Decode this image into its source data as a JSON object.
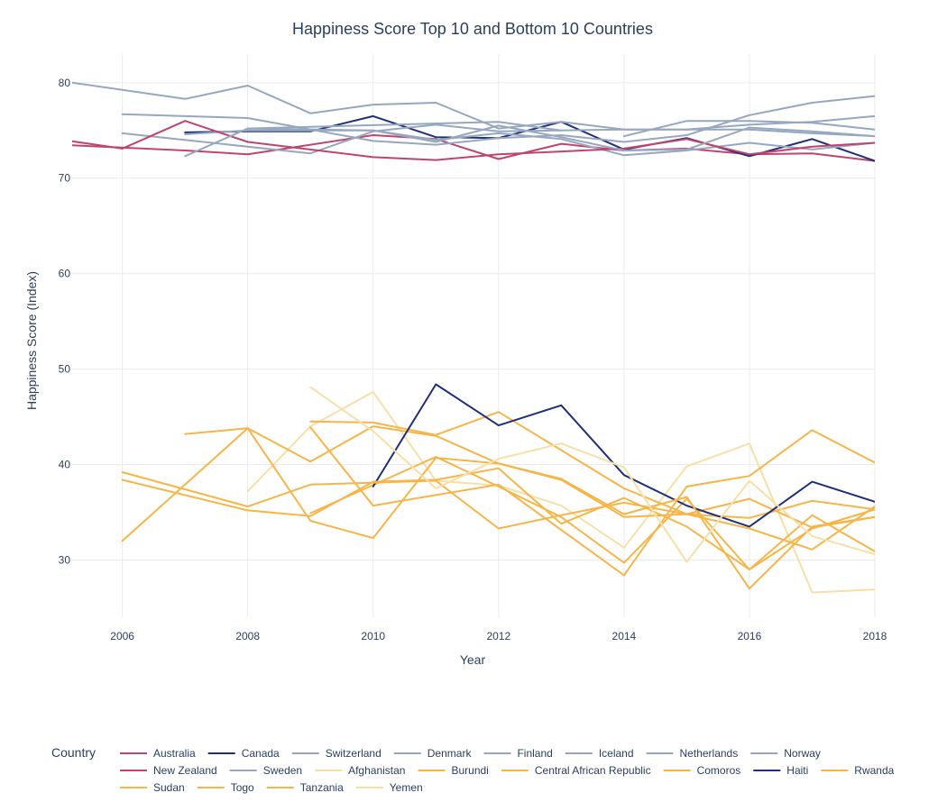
{
  "chart_data": {
    "type": "line",
    "title": "Happiness Score Top 10 and Bottom 10 Countries",
    "xlabel": "Year",
    "ylabel": "Happiness Score (Index)",
    "xlim": [
      2005.2,
      2018
    ],
    "ylim": [
      24,
      83
    ],
    "x_ticks": [
      2006,
      2008,
      2010,
      2012,
      2014,
      2016,
      2018
    ],
    "y_ticks": [
      30,
      40,
      50,
      60,
      70,
      80
    ],
    "grid": true,
    "legend_title": "Country",
    "legend_placement": "bottom",
    "series": [
      {
        "name": "Australia",
        "color": "#c0446e",
        "points": [
          [
            2005,
            73.5
          ],
          [
            2007,
            72.9
          ],
          [
            2008,
            72.5
          ],
          [
            2010,
            74.5
          ],
          [
            2011,
            74.1
          ],
          [
            2012,
            72.0
          ],
          [
            2013,
            73.6
          ],
          [
            2014,
            72.9
          ],
          [
            2015,
            73.1
          ],
          [
            2016,
            72.5
          ],
          [
            2017,
            72.6
          ],
          [
            2018,
            71.8
          ]
        ]
      },
      {
        "name": "Canada",
        "color": "#1f2f7a",
        "points": [
          [
            2007,
            74.8
          ],
          [
            2008,
            74.9
          ],
          [
            2009,
            74.9
          ],
          [
            2010,
            76.5
          ],
          [
            2011,
            74.3
          ],
          [
            2012,
            74.2
          ],
          [
            2013,
            75.9
          ],
          [
            2014,
            73.0
          ],
          [
            2015,
            74.2
          ],
          [
            2016,
            72.3
          ],
          [
            2017,
            74.1
          ],
          [
            2018,
            71.8
          ]
        ]
      },
      {
        "name": "Switzerland",
        "color": "#96a7c0",
        "points": [
          [
            2006,
            74.7
          ],
          [
            2009,
            72.6
          ],
          [
            2010,
            74.9
          ],
          [
            2011,
            75.6
          ],
          [
            2012,
            74.9
          ],
          [
            2014,
            75.1
          ],
          [
            2015,
            75.1
          ],
          [
            2016,
            75.1
          ],
          [
            2017,
            74.7
          ],
          [
            2018,
            74.4
          ]
        ]
      },
      {
        "name": "Denmark",
        "color": "#96a7c0",
        "points": [
          [
            2005,
            80.2
          ],
          [
            2007,
            78.3
          ],
          [
            2008,
            79.7
          ],
          [
            2009,
            76.8
          ],
          [
            2010,
            77.7
          ],
          [
            2011,
            77.9
          ],
          [
            2012,
            75.2
          ],
          [
            2013,
            75.9
          ],
          [
            2014,
            75.1
          ],
          [
            2015,
            75.1
          ],
          [
            2016,
            75.6
          ],
          [
            2017,
            75.9
          ],
          [
            2018,
            76.5
          ]
        ]
      },
      {
        "name": "Finland",
        "color": "#96a7c0",
        "points": [
          [
            2006,
            76.7
          ],
          [
            2008,
            76.3
          ],
          [
            2010,
            73.9
          ],
          [
            2011,
            73.5
          ],
          [
            2012,
            74.2
          ],
          [
            2013,
            74.5
          ],
          [
            2014,
            73.8
          ],
          [
            2015,
            74.5
          ],
          [
            2016,
            76.6
          ],
          [
            2017,
            77.9
          ],
          [
            2018,
            78.6
          ]
        ]
      },
      {
        "name": "Iceland",
        "color": "#96a7c0",
        "points": [
          [
            2008,
            75.2
          ],
          [
            2012,
            75.9
          ],
          [
            2013,
            75.0
          ]
        ]
      },
      {
        "name": "Netherlands",
        "color": "#96a7c0",
        "points": [
          [
            2007,
            74.6
          ],
          [
            2008,
            75.0
          ],
          [
            2010,
            75.0
          ],
          [
            2011,
            74.0
          ],
          [
            2012,
            74.7
          ],
          [
            2013,
            74.1
          ],
          [
            2014,
            72.4
          ],
          [
            2015,
            72.9
          ],
          [
            2016,
            73.7
          ],
          [
            2017,
            73.0
          ],
          [
            2018,
            73.7
          ]
        ]
      },
      {
        "name": "Norway",
        "color": "#96a7c0",
        "points": [
          [
            2014,
            74.4
          ],
          [
            2015,
            76.0
          ],
          [
            2016,
            76.0
          ],
          [
            2017,
            75.8
          ],
          [
            2018,
            75.1
          ]
        ]
      },
      {
        "name": "New Zealand",
        "color": "#c0446e",
        "points": [
          [
            2004,
            75.0
          ],
          [
            2006,
            73.1
          ],
          [
            2007,
            76.0
          ],
          [
            2008,
            73.8
          ],
          [
            2010,
            72.2
          ],
          [
            2011,
            71.9
          ],
          [
            2012,
            72.5
          ],
          [
            2013,
            72.8
          ],
          [
            2014,
            73.1
          ],
          [
            2015,
            74.1
          ],
          [
            2016,
            72.5
          ],
          [
            2017,
            73.3
          ],
          [
            2018,
            73.7
          ]
        ]
      },
      {
        "name": "Sweden",
        "color": "#96a7c0",
        "points": [
          [
            2007,
            72.3
          ],
          [
            2008,
            75.2
          ],
          [
            2010,
            75.0
          ],
          [
            2011,
            73.8
          ],
          [
            2012,
            75.5
          ],
          [
            2013,
            74.3
          ],
          [
            2014,
            72.9
          ],
          [
            2015,
            73.0
          ],
          [
            2016,
            75.3
          ],
          [
            2017,
            74.9
          ],
          [
            2018,
            74.4
          ]
        ]
      },
      {
        "name": "Afghanistan",
        "color": "#f7dfa8",
        "points": [
          [
            2008,
            37.2
          ],
          [
            2009,
            44.0
          ],
          [
            2010,
            47.6
          ],
          [
            2011,
            38.3
          ],
          [
            2012,
            37.8
          ],
          [
            2013,
            35.7
          ],
          [
            2014,
            31.3
          ],
          [
            2015,
            39.8
          ],
          [
            2016,
            42.2
          ],
          [
            2017,
            26.6
          ],
          [
            2018,
            26.9
          ]
        ]
      },
      {
        "name": "Burundi",
        "color": "#f7b548",
        "points": [
          [
            2009,
            34.9
          ],
          [
            2011,
            40.8
          ],
          [
            2012,
            37.7
          ],
          [
            2013,
            34.5
          ],
          [
            2014,
            29.7
          ],
          [
            2015,
            36.4
          ],
          [
            2016,
            29.0
          ],
          [
            2017,
            34.7
          ],
          [
            2018,
            30.9
          ]
        ]
      },
      {
        "name": "Central African Republic",
        "color": "#f7b548",
        "points": [
          [
            2007,
            43.2
          ],
          [
            2008,
            43.8
          ],
          [
            2009,
            40.3
          ],
          [
            2010,
            44.0
          ],
          [
            2011,
            43.0
          ],
          [
            2012,
            40.1
          ],
          [
            2013,
            38.4
          ],
          [
            2014,
            34.5
          ],
          [
            2015,
            34.8
          ],
          [
            2016,
            36.4
          ],
          [
            2017,
            33.4
          ],
          [
            2018,
            34.5
          ]
        ]
      },
      {
        "name": "Comoros",
        "color": "#f7b548",
        "points": [
          [
            2009,
            44.5
          ],
          [
            2010,
            44.4
          ],
          [
            2011,
            43.1
          ],
          [
            2012,
            45.5
          ],
          [
            2014,
            37.5
          ],
          [
            2015,
            34.8
          ],
          [
            2016,
            34.4
          ],
          [
            2017,
            36.2
          ],
          [
            2018,
            35.3
          ]
        ]
      },
      {
        "name": "Haiti",
        "color": "#1f2f7a",
        "points": [
          [
            2010,
            37.7
          ],
          [
            2011,
            48.4
          ],
          [
            2012,
            44.1
          ],
          [
            2013,
            46.2
          ],
          [
            2014,
            38.9
          ],
          [
            2015,
            35.7
          ],
          [
            2016,
            33.5
          ],
          [
            2017,
            38.2
          ],
          [
            2018,
            36.1
          ]
        ]
      },
      {
        "name": "Rwanda",
        "color": "#f7b548",
        "points": [
          [
            2006,
            39.2
          ],
          [
            2008,
            35.6
          ],
          [
            2009,
            37.9
          ],
          [
            2011,
            38.3
          ],
          [
            2012,
            33.3
          ],
          [
            2013,
            34.7
          ],
          [
            2014,
            36.0
          ],
          [
            2015,
            34.8
          ],
          [
            2016,
            33.3
          ],
          [
            2017,
            31.1
          ],
          [
            2018,
            35.6
          ]
        ]
      },
      {
        "name": "Sudan",
        "color": "#f7b548",
        "points": [
          [
            2009,
            43.9
          ],
          [
            2010,
            35.7
          ],
          [
            2011,
            36.8
          ],
          [
            2012,
            37.9
          ],
          [
            2014,
            28.4
          ],
          [
            2015,
            37.7
          ],
          [
            2016,
            38.8
          ],
          [
            2017,
            43.6
          ],
          [
            2018,
            40.2
          ]
        ]
      },
      {
        "name": "Togo",
        "color": "#f7b548",
        "points": [
          [
            2006,
            32.0
          ],
          [
            2008,
            43.8
          ],
          [
            2009,
            34.1
          ],
          [
            2010,
            32.3
          ],
          [
            2011,
            40.7
          ],
          [
            2012,
            40.1
          ],
          [
            2013,
            38.5
          ],
          [
            2014,
            34.8
          ],
          [
            2015,
            36.6
          ],
          [
            2016,
            27.0
          ],
          [
            2017,
            33.5
          ],
          [
            2018,
            34.5
          ]
        ]
      },
      {
        "name": "Tanzania",
        "color": "#f7b548",
        "points": [
          [
            2006,
            38.4
          ],
          [
            2008,
            35.2
          ],
          [
            2009,
            34.6
          ],
          [
            2010,
            38.2
          ],
          [
            2011,
            38.4
          ],
          [
            2012,
            39.6
          ],
          [
            2013,
            33.8
          ],
          [
            2014,
            36.5
          ],
          [
            2015,
            33.5
          ],
          [
            2016,
            29.0
          ],
          [
            2017,
            33.3
          ],
          [
            2018,
            35.3
          ]
        ]
      },
      {
        "name": "Yemen",
        "color": "#f7dfa8",
        "points": [
          [
            2009,
            48.1
          ],
          [
            2010,
            43.5
          ],
          [
            2011,
            37.5
          ],
          [
            2012,
            40.6
          ],
          [
            2013,
            42.2
          ],
          [
            2014,
            39.7
          ],
          [
            2015,
            29.8
          ],
          [
            2016,
            38.3
          ],
          [
            2017,
            32.5
          ],
          [
            2018,
            30.6
          ]
        ]
      }
    ]
  }
}
